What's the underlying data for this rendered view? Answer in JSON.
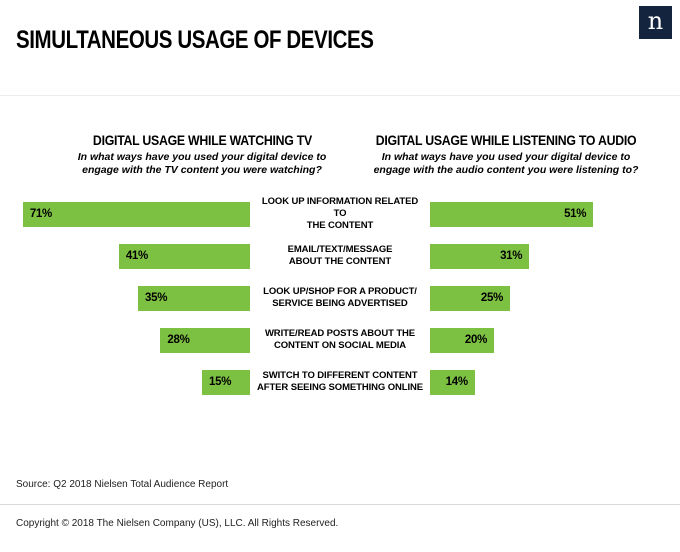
{
  "header": {
    "title": "SIMULTANEOUS USAGE OF DEVICES",
    "logo_letter": "n"
  },
  "charts": {
    "left": {
      "title": "DIGITAL USAGE WHILE WATCHING TV",
      "subtitle": "In what ways have you used your digital device to\nengage with the TV content you were watching?"
    },
    "right": {
      "title": "DIGITAL USAGE WHILE LISTENING TO AUDIO",
      "subtitle": "In what ways have you used your digital device to\nengage with the audio content you were listening to?"
    }
  },
  "chart_data": {
    "type": "bar",
    "layout": "horizontal-butterfly",
    "categories": [
      "LOOK UP INFORMATION RELATED TO\nTHE CONTENT",
      "EMAIL/TEXT/MESSAGE\nABOUT THE CONTENT",
      "LOOK UP/SHOP FOR A PRODUCT/\nSERVICE BEING ADVERTISED",
      "WRITE/READ POSTS ABOUT THE\nCONTENT ON SOCIAL MEDIA",
      "SWITCH TO DIFFERENT CONTENT\nAFTER SEEING SOMETHING ONLINE"
    ],
    "series": [
      {
        "name": "Digital usage while watching TV",
        "values": [
          71,
          41,
          35,
          28,
          15
        ],
        "unit": "%"
      },
      {
        "name": "Digital usage while listening to audio",
        "values": [
          51,
          31,
          25,
          20,
          14
        ],
        "unit": "%"
      }
    ],
    "value_labels": {
      "tv": [
        "71%",
        "41%",
        "35%",
        "28%",
        "15%"
      ],
      "audio": [
        "51%",
        "31%",
        "25%",
        "20%",
        "14%"
      ]
    },
    "bar_color": "#7DC142",
    "xlim": [
      0,
      75
    ],
    "grid": false,
    "legend": "none"
  },
  "footer": {
    "source": "Source: Q2 2018 Nielsen Total Audience Report",
    "copyright": "Copyright © 2018 The Nielsen Company (US), LLC. All Rights Reserved."
  }
}
